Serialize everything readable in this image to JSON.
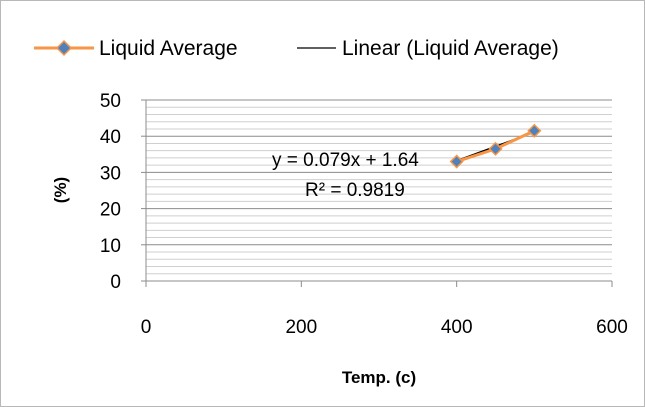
{
  "chart_data": {
    "type": "scatter",
    "legend_position": "top",
    "legend": [
      "Liquid Average",
      "Linear (Liquid Average)"
    ],
    "series": [
      {
        "name": "Liquid Average",
        "x": [
          400,
          450,
          500
        ],
        "y": [
          33,
          36.5,
          41.5
        ],
        "line_color": "#f79646",
        "marker_color": "#4f81bd",
        "marker": "diamond"
      }
    ],
    "trendline": {
      "name": "Linear (Liquid Average)",
      "type": "linear",
      "slope": 0.079,
      "intercept": 1.64,
      "equation": "y = 0.079x + 1.64",
      "r_squared": "R² = 0.9819",
      "color": "#000000"
    },
    "xlabel": "Temp. (c)",
    "ylabel": "(%)",
    "xlim": [
      0,
      600
    ],
    "ylim": [
      0,
      50
    ],
    "x_ticks": [
      "0",
      "200",
      "400",
      "600"
    ],
    "y_ticks": [
      "0",
      "10",
      "20",
      "30",
      "40",
      "50"
    ],
    "grid": true
  }
}
